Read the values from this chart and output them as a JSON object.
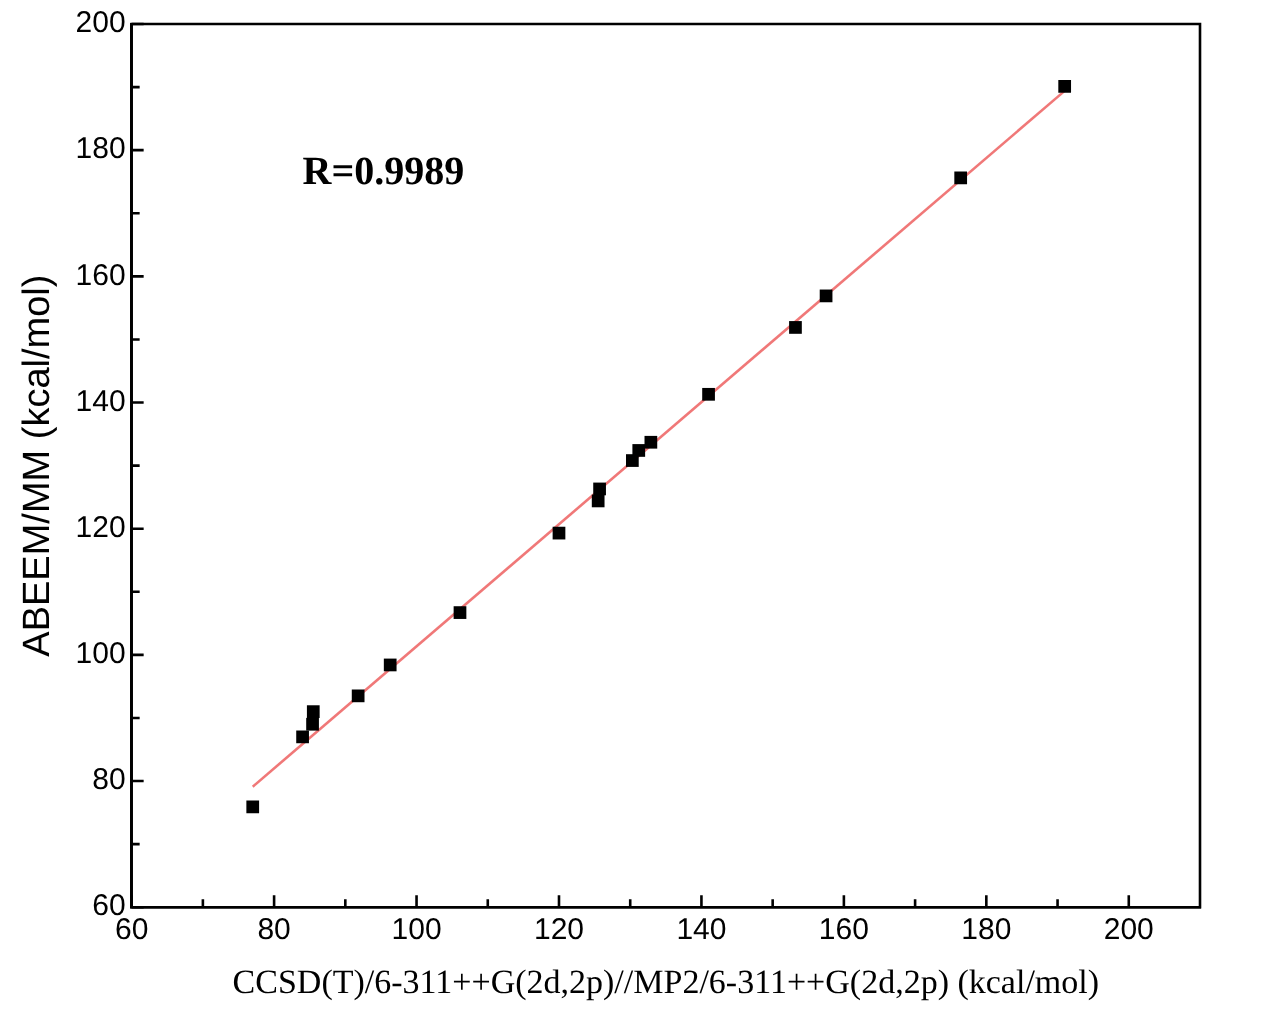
{
  "chart_data": {
    "type": "scatter",
    "xlabel": "CCSD(T)/6-311++G(2d,2p)//MP2/6-311++G(2d,2p) (kcal/mol)",
    "ylabel": "ABEEM/MM (kcal/mol)",
    "annotations": [
      "R=0.9989"
    ],
    "marker": "square",
    "grid": false,
    "legend": false,
    "xlim": [
      60,
      210
    ],
    "xticks": [
      60,
      {
        "value": 70,
        "label": null
      },
      80,
      {
        "value": 90,
        "label": null
      },
      100,
      {
        "value": 110,
        "label": null
      },
      120,
      {
        "value": 130,
        "label": null
      },
      140,
      {
        "value": 150,
        "label": null
      },
      160,
      {
        "value": 170,
        "label": null
      },
      180,
      {
        "value": 190,
        "label": null
      },
      200
    ],
    "ylim": [
      60,
      200
    ],
    "yticks": [
      60,
      {
        "value": 70,
        "label": null
      },
      80,
      {
        "value": 90,
        "label": null
      },
      100,
      {
        "value": 110,
        "label": null
      },
      120,
      {
        "value": 130,
        "label": null
      },
      140,
      {
        "value": 150,
        "label": null
      },
      160,
      {
        "value": 170,
        "label": null
      },
      180,
      {
        "value": 190,
        "label": null
      },
      200
    ],
    "series": [
      {
        "color": "#000000",
        "x": [
          77.0,
          84.0,
          85.4,
          85.5,
          91.8,
          96.3,
          106.1,
          120.0,
          125.5,
          125.7,
          130.3,
          131.2,
          132.9,
          141.0,
          153.2,
          157.5,
          176.4,
          191.0
        ],
        "values": [
          75.9,
          87.0,
          89.0,
          91.0,
          93.5,
          98.4,
          106.7,
          119.3,
          124.4,
          126.3,
          130.8,
          132.4,
          133.7,
          141.3,
          151.9,
          156.9,
          175.6,
          190.1
        ]
      },
      {
        "type": "line",
        "color": "#f07878",
        "marker": "none",
        "x": [
          77,
          191
        ],
        "values": [
          79.1,
          189.4
        ]
      }
    ]
  }
}
